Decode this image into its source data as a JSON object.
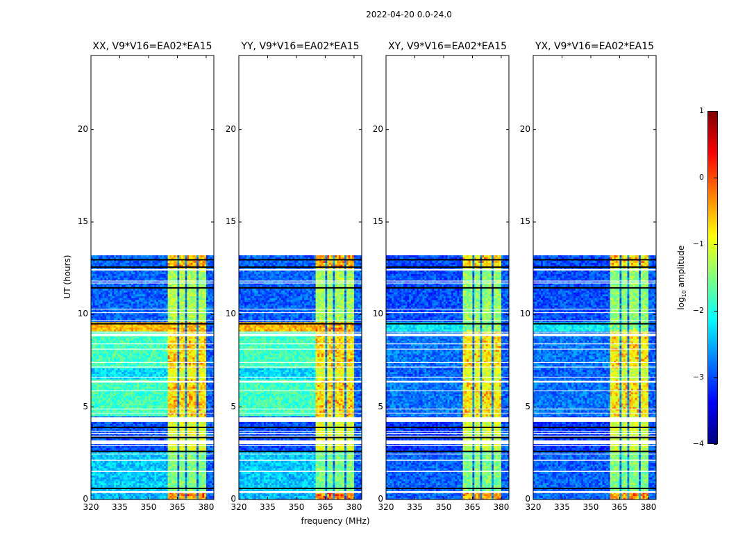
{
  "chart_data": {
    "type": "heatmap",
    "suptitle": "2022-04-20 0.0-24.0",
    "xlabel": "frequency (MHz)",
    "ylabel": "UT (hours)",
    "xlim": [
      320,
      384
    ],
    "ylim": [
      0,
      24
    ],
    "xticks": [
      320,
      335,
      350,
      365,
      380
    ],
    "yticks": [
      0,
      5,
      10,
      15,
      20
    ],
    "colorbar": {
      "label": "log10 amplitude",
      "label_main": "log",
      "label_sub": "10",
      "label_rest": " amplitude",
      "range": [
        -4,
        1
      ],
      "ticks": [
        "1",
        "0",
        "−1",
        "−2",
        "−3",
        "−4"
      ],
      "tick_values": [
        1,
        0,
        -1,
        -2,
        -3,
        -4
      ],
      "colormap": "jet"
    },
    "panels": [
      {
        "title": "XX, V9*V16=EA02*EA15",
        "cross": false
      },
      {
        "title": "YY, V9*V16=EA02*EA15",
        "cross": false
      },
      {
        "title": "XY, V9*V16=EA02*EA15",
        "cross": true
      },
      {
        "title": "YX, V9*V16=EA02*EA15",
        "cross": true
      }
    ],
    "data_time_range_hours": [
      0,
      13.2
    ],
    "bright_band_mhz": [
      360,
      380
    ],
    "band_dropout_channels_mhz": [
      365,
      369,
      375
    ],
    "time_segments": [
      {
        "t": [
          0,
          0.4
        ],
        "bg": -2.5,
        "band": -0.4,
        "bg_cross": -2.9,
        "band_cross": -0.5
      },
      {
        "t": [
          0.4,
          2.6
        ],
        "bg": -2.4,
        "band": -1.5,
        "bg_cross": -2.9,
        "band_cross": -1.5
      },
      {
        "t": [
          2.6,
          4.45
        ],
        "bg": -3.0,
        "band": -1.0,
        "bg_cross": -3.1,
        "band_cross": -1.1
      },
      {
        "t": [
          4.45,
          6.4
        ],
        "bg": -1.8,
        "band": -0.8,
        "bg_cross": -2.8,
        "band_cross": -0.9
      },
      {
        "t": [
          6.4,
          7.0
        ],
        "bg": -2.3,
        "band": -1.0,
        "bg_cross": -2.9,
        "band_cross": -1.1
      },
      {
        "t": [
          7.0,
          9.0
        ],
        "bg": -1.8,
        "band": -0.8,
        "bg_cross": -2.8,
        "band_cross": -0.9
      },
      {
        "t": [
          9.0,
          9.5
        ],
        "bg": -0.5,
        "band": -0.6,
        "bg_cross": -2.2,
        "band_cross": -1.6
      },
      {
        "t": [
          9.5,
          12.4
        ],
        "bg": -2.9,
        "band": -1.3,
        "bg_cross": -3.0,
        "band_cross": -1.4
      },
      {
        "t": [
          12.4,
          13.2
        ],
        "bg": -2.9,
        "band": -0.6,
        "bg_cross": -3.0,
        "band_cross": -0.8
      }
    ],
    "flagged_gaps_hours": [
      [
        0.35,
        0.45
      ],
      [
        1.5,
        1.55
      ],
      [
        2.1,
        2.15
      ],
      [
        2.44,
        2.48
      ],
      [
        2.9,
        2.95
      ],
      [
        3.0,
        3.2
      ],
      [
        3.4,
        3.45
      ],
      [
        3.55,
        3.6
      ],
      [
        3.67,
        3.71
      ],
      [
        4.2,
        4.45
      ],
      [
        4.65,
        4.69
      ],
      [
        4.87,
        4.91
      ],
      [
        5.86,
        5.9
      ],
      [
        6.32,
        6.42
      ],
      [
        6.58,
        6.62
      ],
      [
        7.14,
        7.18
      ],
      [
        7.39,
        7.43
      ],
      [
        8.11,
        8.15
      ],
      [
        8.39,
        8.43
      ],
      [
        8.83,
        8.97
      ],
      [
        9.02,
        9.06
      ],
      [
        9.64,
        9.68
      ],
      [
        10.08,
        10.12
      ],
      [
        10.27,
        10.31
      ],
      [
        11.68,
        11.72
      ],
      [
        11.79,
        11.83
      ],
      [
        12.38,
        12.46
      ]
    ],
    "zero_rows_hours": [
      0.6,
      2.6,
      3.35,
      3.9,
      9.5,
      11.44,
      12.56,
      12.96
    ]
  }
}
